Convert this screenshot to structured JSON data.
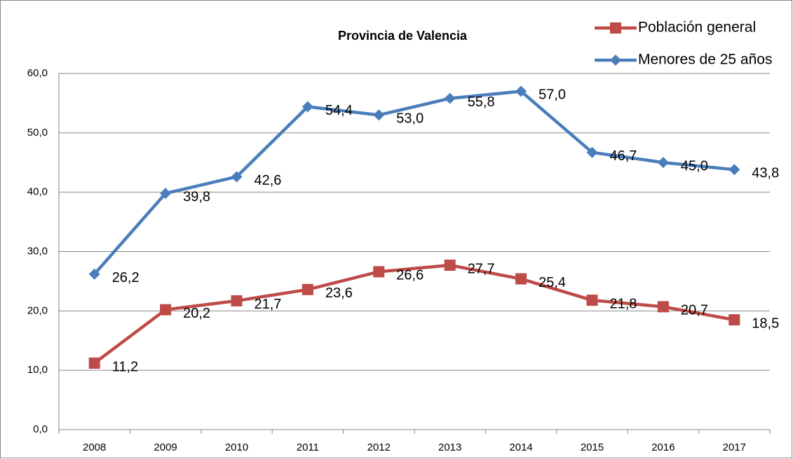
{
  "chart_data": {
    "type": "line",
    "title": "Provincia de Valencia",
    "categories": [
      "2008",
      "2009",
      "2010",
      "2011",
      "2012",
      "2013",
      "2014",
      "2015",
      "2016",
      "2017"
    ],
    "series": [
      {
        "name": "Población general",
        "color": "#be4b48",
        "marker": "square",
        "values": [
          11.2,
          20.2,
          21.7,
          23.6,
          26.6,
          27.7,
          25.4,
          21.8,
          20.7,
          18.5
        ],
        "value_labels": [
          "11,2",
          "20,2",
          "21,7",
          "23,6",
          "26,6",
          "27,7",
          "25,4",
          "21,8",
          "20,7",
          "18,5"
        ]
      },
      {
        "name": "Menores de 25 años",
        "color": "#4a7ebb",
        "marker": "diamond",
        "values": [
          26.2,
          39.8,
          42.6,
          54.4,
          53.0,
          55.8,
          57.0,
          46.7,
          45.0,
          43.8
        ],
        "value_labels": [
          "26,2",
          "39,8",
          "42,6",
          "54,4",
          "53,0",
          "55,8",
          "57,0",
          "46,7",
          "45,0",
          "43,8"
        ]
      }
    ],
    "ylim": [
      0,
      60
    ],
    "yticks": [
      {
        "value": 0,
        "label": "0,0"
      },
      {
        "value": 10,
        "label": "10,0"
      },
      {
        "value": 20,
        "label": "20,0"
      },
      {
        "value": 30,
        "label": "30,0"
      },
      {
        "value": 40,
        "label": "40,0"
      },
      {
        "value": 50,
        "label": "50,0"
      },
      {
        "value": 60,
        "label": "60,0"
      }
    ],
    "grid": true,
    "legend": "top-right"
  }
}
